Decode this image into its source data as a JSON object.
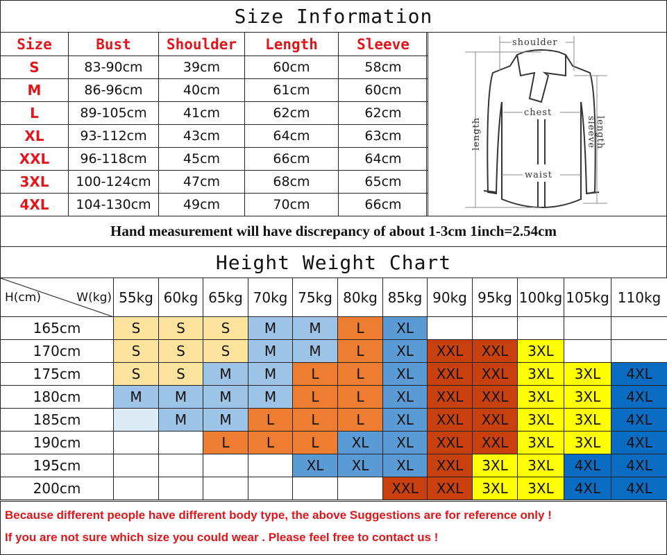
{
  "size_info": {
    "title": "Size Information",
    "headers": [
      "Size",
      "Bust",
      "Shoulder",
      "Length",
      "Sleeve"
    ],
    "rows": [
      [
        "S",
        "83-90cm",
        "39cm",
        "60cm",
        "58cm"
      ],
      [
        "M",
        "86-96cm",
        "40cm",
        "61cm",
        "60cm"
      ],
      [
        "L",
        "89-105cm",
        "41cm",
        "62cm",
        "62cm"
      ],
      [
        "XL",
        "93-112cm",
        "43cm",
        "64cm",
        "63cm"
      ],
      [
        "XXL",
        "96-118cm",
        "45cm",
        "66cm",
        "64cm"
      ],
      [
        "3XL",
        "100-124cm",
        "47cm",
        "68cm",
        "65cm"
      ],
      [
        "4XL",
        "104-130cm",
        "49cm",
        "70cm",
        "66cm"
      ]
    ]
  },
  "diagram": {
    "shoulder": "shoulder",
    "chest": "chest",
    "waist": "waist",
    "length": "length",
    "sleeve_1": "sleeve",
    "sleeve_2": "length"
  },
  "note": "Hand measurement will have discrepancy of about 1-3cm  1inch=2.54cm",
  "hw_chart": {
    "title": "Height Weight Chart",
    "corner_h": "H(cm)",
    "corner_w": "W(kg)",
    "weights": [
      "55kg",
      "60kg",
      "65kg",
      "70kg",
      "75kg",
      "80kg",
      "85kg",
      "90kg",
      "95kg",
      "100kg",
      "105kg",
      "110kg"
    ],
    "rows": [
      {
        "height": "165cm",
        "sizes": [
          "S",
          "S",
          "S",
          "M",
          "M",
          "L",
          "XL",
          "",
          "",
          "",
          "",
          ""
        ]
      },
      {
        "height": "170cm",
        "sizes": [
          "S",
          "S",
          "S",
          "M",
          "M",
          "L",
          "XL",
          "XXL",
          "XXL",
          "3XL",
          "",
          ""
        ]
      },
      {
        "height": "175cm",
        "sizes": [
          "S",
          "S",
          "M",
          "M",
          "L",
          "L",
          "XL",
          "XXL",
          "XXL",
          "3XL",
          "3XL",
          "4XL"
        ]
      },
      {
        "height": "180cm",
        "sizes": [
          "M",
          "M",
          "M",
          "M",
          "L",
          "L",
          "XL",
          "XXL",
          "XXL",
          "3XL",
          "3XL",
          "4XL"
        ]
      },
      {
        "height": "185cm",
        "sizes": [
          "*",
          "M",
          "M",
          "L",
          "L",
          "L",
          "XL",
          "XXL",
          "XXL",
          "3XL",
          "3XL",
          "4XL"
        ]
      },
      {
        "height": "190cm",
        "sizes": [
          "",
          "",
          "L",
          "L",
          "L",
          "XL",
          "XL",
          "XXL",
          "XXL",
          "3XL",
          "3XL",
          "4XL"
        ]
      },
      {
        "height": "195cm",
        "sizes": [
          "",
          "",
          "",
          "",
          "XL",
          "XL",
          "XL",
          "XXL",
          "3XL",
          "3XL",
          "4XL",
          "4XL"
        ]
      },
      {
        "height": "200cm",
        "sizes": [
          "",
          "",
          "",
          "",
          "",
          "",
          "XXL",
          "XXL",
          "3XL",
          "3XL",
          "4XL",
          "4XL"
        ]
      }
    ],
    "colors": {
      "S": "#fde49e",
      "M": "#9dc3e6",
      "L": "#ed7d31",
      "XL": "#5b9bd5",
      "XXL": "#c9400f",
      "3XL": "#ffff00",
      "4XL": "#0a6cc2",
      "*": "#ddebf7"
    }
  },
  "footer": {
    "line1": "Because different people have different body type, the above Suggestions are for reference only !",
    "line2": "If you are not sure which size you could wear . Please feel free to contact us !"
  }
}
